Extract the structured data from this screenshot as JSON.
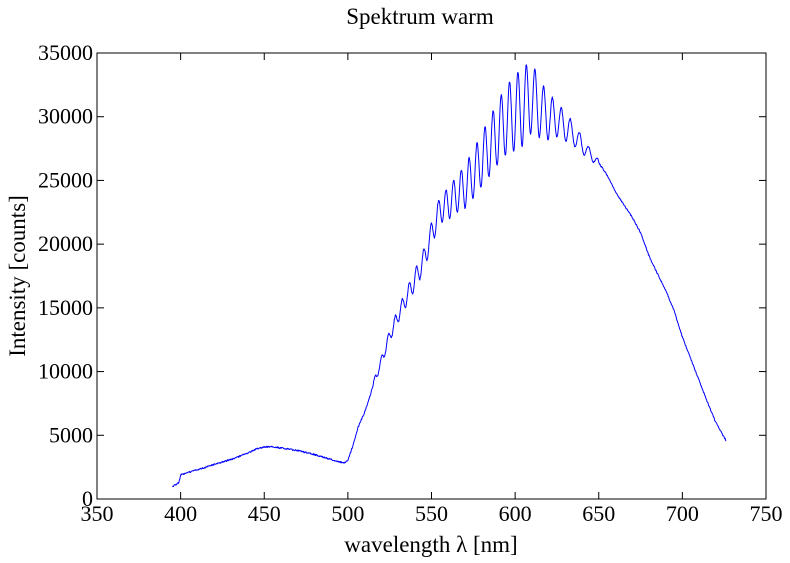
{
  "chart_data": {
    "type": "line",
    "title": "Spektrum warm",
    "xlabel": "wavelength λ [nm]",
    "ylabel": "Intensity [counts]",
    "xlim": [
      350,
      750
    ],
    "ylim": [
      0,
      35000
    ],
    "xticks": [
      "350",
      "400",
      "450",
      "500",
      "550",
      "600",
      "650",
      "700",
      "750"
    ],
    "yticks": [
      "0",
      "5000",
      "10000",
      "15000",
      "20000",
      "25000",
      "30000",
      "35000"
    ],
    "grid": false,
    "series": [
      {
        "color": "#0000ff",
        "x": [
          395,
          397,
          398,
          399,
          400,
          405,
          410,
          420,
          430,
          440,
          445,
          450,
          455,
          460,
          470,
          480,
          490,
          495,
          498,
          500,
          503,
          506,
          510,
          513,
          516,
          520,
          525,
          530,
          535,
          540,
          545,
          550,
          555,
          560,
          565,
          570,
          575,
          580,
          585,
          590,
          595,
          600,
          605,
          610,
          615,
          620,
          625,
          630,
          635,
          640,
          645,
          650,
          655,
          660,
          665,
          670,
          675,
          680,
          685,
          690,
          695,
          700,
          705,
          710,
          715,
          720,
          726
        ],
        "y": [
          1000,
          1100,
          1200,
          1300,
          1900,
          2100,
          2300,
          2700,
          3100,
          3600,
          3900,
          4100,
          4100,
          4000,
          3800,
          3500,
          3100,
          2900,
          2850,
          3000,
          4200,
          5600,
          6800,
          8000,
          9300,
          10800,
          12800,
          14400,
          15800,
          17200,
          18600,
          20800,
          22700,
          23200,
          23900,
          24500,
          25500,
          26600,
          27700,
          28800,
          29800,
          30300,
          30900,
          31500,
          30600,
          30000,
          29800,
          29200,
          28600,
          27800,
          27000,
          26400,
          25400,
          24100,
          23100,
          22100,
          20900,
          19100,
          17700,
          16400,
          14800,
          12700,
          11000,
          9300,
          7600,
          6000,
          4600
        ]
      }
    ]
  }
}
